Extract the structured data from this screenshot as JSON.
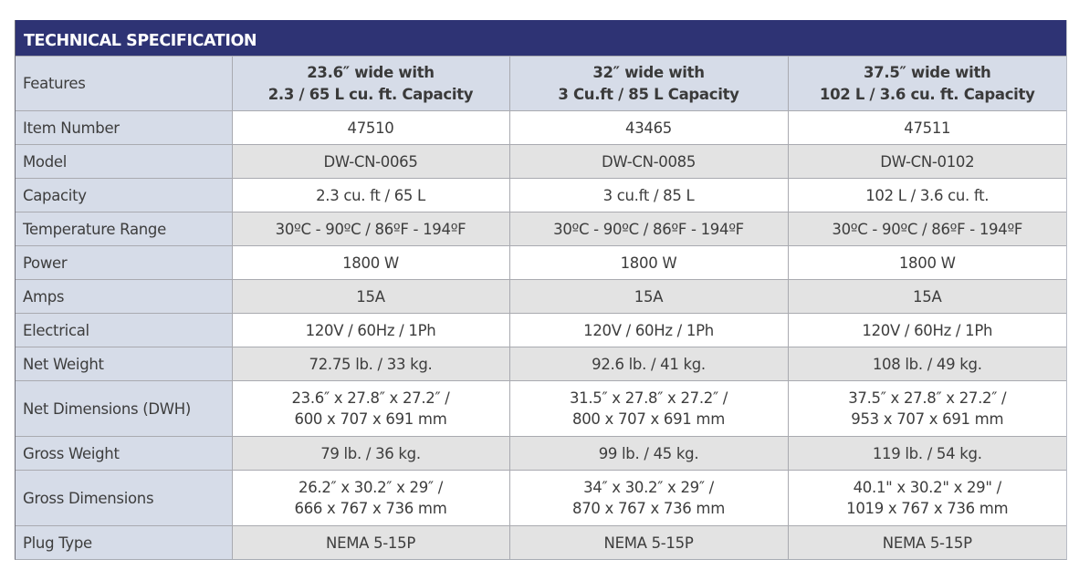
{
  "table": {
    "title": "TECHNICAL SPECIFICATION",
    "colors": {
      "title_bar": "#2e3374",
      "label_bg": "#d6dce8",
      "row_alt_bg": "#e3e3e3",
      "row_bg": "#ffffff"
    },
    "header": {
      "label": "Features",
      "columns": [
        {
          "line1": "23.6″ wide with",
          "line2": "2.3 / 65 L  cu. ft. Capacity"
        },
        {
          "line1": "32″ wide with",
          "line2": "3 Cu.ft / 85 L Capacity"
        },
        {
          "line1": "37.5″ wide with",
          "line2": "102 L / 3.6 cu. ft. Capacity"
        }
      ]
    },
    "rows": [
      {
        "label": "Item Number",
        "values": [
          "47510",
          "43465",
          "47511"
        ]
      },
      {
        "label": "Model",
        "values": [
          "DW-CN-0065",
          "DW-CN-0085",
          "DW-CN-0102"
        ]
      },
      {
        "label": "Capacity",
        "values": [
          "2.3 cu. ft / 65 L",
          "3 cu.ft / 85 L",
          "102 L / 3.6 cu. ft."
        ]
      },
      {
        "label": "Temperature Range",
        "values": [
          "30ºC - 90ºC / 86ºF - 194ºF",
          "30ºC - 90ºC  / 86ºF - 194ºF",
          "30ºC - 90ºC / 86ºF - 194ºF"
        ]
      },
      {
        "label": "Power",
        "values": [
          "1800 W",
          "1800 W",
          "1800 W"
        ]
      },
      {
        "label": "Amps",
        "values": [
          "15A",
          "15A",
          "15A"
        ]
      },
      {
        "label": "Electrical",
        "values": [
          "120V / 60Hz / 1Ph",
          "120V / 60Hz / 1Ph",
          "120V / 60Hz / 1Ph"
        ]
      },
      {
        "label": "Net Weight",
        "values": [
          "72.75 lb. / 33 kg.",
          "92.6 lb. / 41 kg.",
          "108 lb. / 49 kg."
        ]
      },
      {
        "label": "Net Dimensions (DWH)",
        "values": [
          {
            "line1": "23.6″ x 27.8″ x 27.2″ /",
            "line2": "600 x 707 x 691 mm"
          },
          {
            "line1": "31.5″ x 27.8″ x 27.2″ /",
            "line2": "800 x 707 x 691 mm"
          },
          {
            "line1": "37.5″ x 27.8″ x 27.2″ /",
            "line2": "953 x 707 x 691 mm"
          }
        ]
      },
      {
        "label": "Gross Weight",
        "values": [
          "79 lb. / 36 kg.",
          "99 lb. / 45 kg.",
          "119 lb. / 54 kg."
        ]
      },
      {
        "label": "Gross Dimensions",
        "values": [
          {
            "line1": "26.2″ x 30.2″ x 29″  /",
            "line2": "666 x 767 x 736 mm"
          },
          {
            "line1": "34″ x 30.2″ x 29″ /",
            "line2": "870 x 767 x 736 mm"
          },
          {
            "line1": "40.1\" x 30.2\" x 29\" /",
            "line2": "1019 x 767 x 736 mm"
          }
        ]
      },
      {
        "label": "Plug Type",
        "values": [
          "NEMA 5-15P",
          "NEMA 5-15P",
          "NEMA 5-15P"
        ]
      }
    ]
  }
}
